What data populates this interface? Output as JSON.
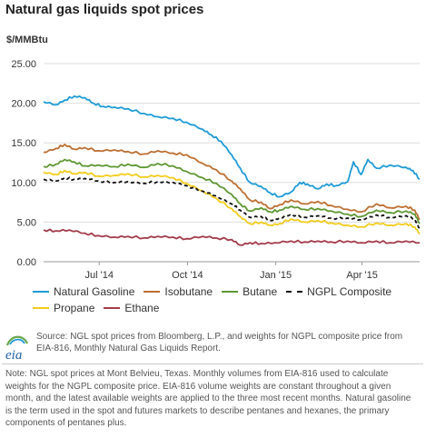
{
  "chart_title": "Natural gas liquids spot prices",
  "units_label": "$/MMBtu",
  "chart_data": {
    "type": "line",
    "title": "Natural gas liquids spot prices",
    "ylabel": "$/MMBtu",
    "xlabel": "",
    "ylim": [
      0,
      25
    ],
    "y_ticks": [
      "0.00",
      "5.00",
      "10.00",
      "15.00",
      "20.00",
      "25.00"
    ],
    "x_ticks": [
      "Jul '14",
      "Oct '14",
      "Jan '15",
      "Apr '15"
    ],
    "x_range": [
      "2014-05-19",
      "2015-06-15"
    ],
    "grid": "horizontal",
    "legend_position": "bottom",
    "series": [
      {
        "name": "Natural Gasoline",
        "color": "#1f9bd6",
        "dashed": false,
        "points": [
          [
            "2014-05-19",
            20.2
          ],
          [
            "2014-06-01",
            19.8
          ],
          [
            "2014-06-10",
            20.4
          ],
          [
            "2014-06-20",
            20.9
          ],
          [
            "2014-07-01",
            20.7
          ],
          [
            "2014-07-10",
            20.0
          ],
          [
            "2014-07-20",
            19.6
          ],
          [
            "2014-08-01",
            19.5
          ],
          [
            "2014-08-15",
            19.3
          ],
          [
            "2014-09-01",
            18.7
          ],
          [
            "2014-09-15",
            18.3
          ],
          [
            "2014-10-01",
            18.1
          ],
          [
            "2014-10-15",
            17.6
          ],
          [
            "2014-11-01",
            16.7
          ],
          [
            "2014-11-10",
            16.0
          ],
          [
            "2014-11-20",
            15.2
          ],
          [
            "2014-12-01",
            13.5
          ],
          [
            "2014-12-10",
            11.8
          ],
          [
            "2014-12-20",
            10.0
          ],
          [
            "2015-01-01",
            9.5
          ],
          [
            "2015-01-10",
            8.7
          ],
          [
            "2015-01-20",
            8.2
          ],
          [
            "2015-02-01",
            8.8
          ],
          [
            "2015-02-10",
            10.0
          ],
          [
            "2015-02-18",
            9.8
          ],
          [
            "2015-03-01",
            9.2
          ],
          [
            "2015-03-10",
            9.8
          ],
          [
            "2015-03-20",
            9.6
          ],
          [
            "2015-04-01",
            10.1
          ],
          [
            "2015-04-07",
            12.6
          ],
          [
            "2015-04-15",
            11.0
          ],
          [
            "2015-04-22",
            12.9
          ],
          [
            "2015-05-01",
            11.8
          ],
          [
            "2015-05-15",
            12.2
          ],
          [
            "2015-06-01",
            11.9
          ],
          [
            "2015-06-08",
            11.5
          ],
          [
            "2015-06-15",
            10.4
          ]
        ]
      },
      {
        "name": "Isobutane",
        "color": "#bd6f32",
        "dashed": false,
        "points": [
          [
            "2014-05-19",
            13.8
          ],
          [
            "2014-06-01",
            14.3
          ],
          [
            "2014-06-10",
            14.8
          ],
          [
            "2014-06-20",
            14.2
          ],
          [
            "2014-07-01",
            14.4
          ],
          [
            "2014-07-15",
            14.0
          ],
          [
            "2014-08-01",
            14.1
          ],
          [
            "2014-08-15",
            13.9
          ],
          [
            "2014-09-01",
            13.6
          ],
          [
            "2014-09-15",
            14.0
          ],
          [
            "2014-10-01",
            13.7
          ],
          [
            "2014-10-15",
            13.5
          ],
          [
            "2014-11-01",
            12.4
          ],
          [
            "2014-11-15",
            11.6
          ],
          [
            "2014-12-01",
            10.2
          ],
          [
            "2014-12-10",
            9.2
          ],
          [
            "2014-12-20",
            7.8
          ],
          [
            "2015-01-01",
            7.5
          ],
          [
            "2015-01-10",
            6.7
          ],
          [
            "2015-01-20",
            7.2
          ],
          [
            "2015-02-01",
            7.8
          ],
          [
            "2015-02-15",
            7.3
          ],
          [
            "2015-03-01",
            7.6
          ],
          [
            "2015-03-15",
            7.1
          ],
          [
            "2015-04-01",
            6.6
          ],
          [
            "2015-04-15",
            6.3
          ],
          [
            "2015-05-01",
            7.3
          ],
          [
            "2015-05-15",
            6.8
          ],
          [
            "2015-06-01",
            7.0
          ],
          [
            "2015-06-10",
            6.5
          ],
          [
            "2015-06-15",
            5.3
          ]
        ]
      },
      {
        "name": "Butane",
        "color": "#5e9732",
        "dashed": false,
        "points": [
          [
            "2014-05-19",
            12.0
          ],
          [
            "2014-06-01",
            12.3
          ],
          [
            "2014-06-10",
            12.9
          ],
          [
            "2014-06-20",
            12.6
          ],
          [
            "2014-07-01",
            12.1
          ],
          [
            "2014-07-15",
            12.2
          ],
          [
            "2014-08-01",
            12.0
          ],
          [
            "2014-08-15",
            12.3
          ],
          [
            "2014-09-01",
            11.9
          ],
          [
            "2014-09-15",
            12.4
          ],
          [
            "2014-10-01",
            12.1
          ],
          [
            "2014-10-15",
            11.4
          ],
          [
            "2014-11-01",
            10.6
          ],
          [
            "2014-11-15",
            9.9
          ],
          [
            "2014-12-01",
            8.5
          ],
          [
            "2014-12-10",
            7.3
          ],
          [
            "2014-12-20",
            6.4
          ],
          [
            "2015-01-01",
            6.8
          ],
          [
            "2015-01-10",
            6.3
          ],
          [
            "2015-01-20",
            6.5
          ],
          [
            "2015-02-01",
            7.0
          ],
          [
            "2015-02-15",
            6.6
          ],
          [
            "2015-03-01",
            6.7
          ],
          [
            "2015-03-15",
            6.4
          ],
          [
            "2015-04-01",
            6.0
          ],
          [
            "2015-04-15",
            5.7
          ],
          [
            "2015-05-01",
            6.5
          ],
          [
            "2015-05-15",
            6.2
          ],
          [
            "2015-06-01",
            6.4
          ],
          [
            "2015-06-10",
            6.0
          ],
          [
            "2015-06-15",
            4.8
          ]
        ]
      },
      {
        "name": "NGPL Composite",
        "color": "#111111",
        "dashed": true,
        "points": [
          [
            "2014-05-19",
            10.4
          ],
          [
            "2014-06-01",
            10.2
          ],
          [
            "2014-06-10",
            10.6
          ],
          [
            "2014-06-20",
            10.4
          ],
          [
            "2014-07-01",
            10.5
          ],
          [
            "2014-07-15",
            10.2
          ],
          [
            "2014-08-01",
            10.0
          ],
          [
            "2014-08-15",
            10.1
          ],
          [
            "2014-09-01",
            9.9
          ],
          [
            "2014-09-15",
            10.1
          ],
          [
            "2014-10-01",
            10.0
          ],
          [
            "2014-10-15",
            9.6
          ],
          [
            "2014-11-01",
            8.9
          ],
          [
            "2014-11-15",
            8.3
          ],
          [
            "2014-12-01",
            7.3
          ],
          [
            "2014-12-10",
            6.5
          ],
          [
            "2014-12-20",
            5.6
          ],
          [
            "2015-01-01",
            5.7
          ],
          [
            "2015-01-10",
            5.2
          ],
          [
            "2015-01-20",
            5.5
          ],
          [
            "2015-02-01",
            6.0
          ],
          [
            "2015-02-15",
            5.6
          ],
          [
            "2015-03-01",
            5.8
          ],
          [
            "2015-03-15",
            5.5
          ],
          [
            "2015-04-01",
            5.5
          ],
          [
            "2015-04-15",
            5.3
          ],
          [
            "2015-05-01",
            5.9
          ],
          [
            "2015-05-15",
            5.6
          ],
          [
            "2015-06-01",
            5.8
          ],
          [
            "2015-06-10",
            5.4
          ],
          [
            "2015-06-15",
            4.2
          ]
        ]
      },
      {
        "name": "Propane",
        "color": "#f3cc1c",
        "dashed": false,
        "points": [
          [
            "2014-05-19",
            11.3
          ],
          [
            "2014-06-01",
            11.0
          ],
          [
            "2014-06-10",
            11.5
          ],
          [
            "2014-06-20",
            11.1
          ],
          [
            "2014-07-01",
            11.3
          ],
          [
            "2014-07-15",
            10.8
          ],
          [
            "2014-08-01",
            10.9
          ],
          [
            "2014-08-15",
            11.1
          ],
          [
            "2014-09-01",
            10.7
          ],
          [
            "2014-09-15",
            10.9
          ],
          [
            "2014-10-01",
            10.6
          ],
          [
            "2014-10-15",
            9.9
          ],
          [
            "2014-11-01",
            8.9
          ],
          [
            "2014-11-15",
            8.0
          ],
          [
            "2014-12-01",
            6.7
          ],
          [
            "2014-12-10",
            5.7
          ],
          [
            "2014-12-20",
            4.8
          ],
          [
            "2015-01-01",
            5.0
          ],
          [
            "2015-01-10",
            4.6
          ],
          [
            "2015-01-20",
            4.8
          ],
          [
            "2015-02-01",
            5.4
          ],
          [
            "2015-02-15",
            5.0
          ],
          [
            "2015-03-01",
            5.2
          ],
          [
            "2015-03-15",
            4.9
          ],
          [
            "2015-04-01",
            4.6
          ],
          [
            "2015-04-15",
            4.4
          ],
          [
            "2015-05-01",
            4.9
          ],
          [
            "2015-05-15",
            4.6
          ],
          [
            "2015-06-01",
            4.8
          ],
          [
            "2015-06-10",
            4.4
          ],
          [
            "2015-06-15",
            3.5
          ]
        ]
      },
      {
        "name": "Ethane",
        "color": "#a33b4a",
        "dashed": false,
        "points": [
          [
            "2014-05-19",
            4.0
          ],
          [
            "2014-06-01",
            3.9
          ],
          [
            "2014-06-15",
            4.0
          ],
          [
            "2014-07-01",
            3.6
          ],
          [
            "2014-07-15",
            3.3
          ],
          [
            "2014-08-01",
            3.1
          ],
          [
            "2014-08-15",
            3.2
          ],
          [
            "2014-09-01",
            3.0
          ],
          [
            "2014-09-15",
            3.2
          ],
          [
            "2014-10-01",
            3.1
          ],
          [
            "2014-10-15",
            2.9
          ],
          [
            "2014-11-01",
            3.2
          ],
          [
            "2014-11-15",
            3.0
          ],
          [
            "2014-12-01",
            2.8
          ],
          [
            "2014-12-10",
            2.1
          ],
          [
            "2014-12-20",
            2.4
          ],
          [
            "2015-01-01",
            2.3
          ],
          [
            "2015-01-15",
            2.4
          ],
          [
            "2015-02-01",
            2.6
          ],
          [
            "2015-02-15",
            2.5
          ],
          [
            "2015-03-01",
            2.6
          ],
          [
            "2015-03-15",
            2.5
          ],
          [
            "2015-04-01",
            2.6
          ],
          [
            "2015-04-15",
            2.4
          ],
          [
            "2015-05-01",
            2.6
          ],
          [
            "2015-05-15",
            2.4
          ],
          [
            "2015-06-01",
            2.6
          ],
          [
            "2015-06-15",
            2.4
          ]
        ]
      }
    ]
  },
  "source": {
    "logo_text": "eia",
    "text": "Source: NGL spot prices from Bloomberg, L.P., and weights for NGPL composite price from EIA-816, Monthly Natural Gas Liquids Report."
  },
  "note": {
    "text": "Note: NGL spot prices at Mont Belvieu, Texas. Monthly volumes from EIA-816 used to calculate weights for the NGPL composite price. EIA-816 volume weights are constant throughout a given month, and the latest available weights are applied to the three most recent months. Natural gasoline is the term used in the spot and futures markets to describe pentanes and hexanes, the primary components of pentanes plus."
  }
}
